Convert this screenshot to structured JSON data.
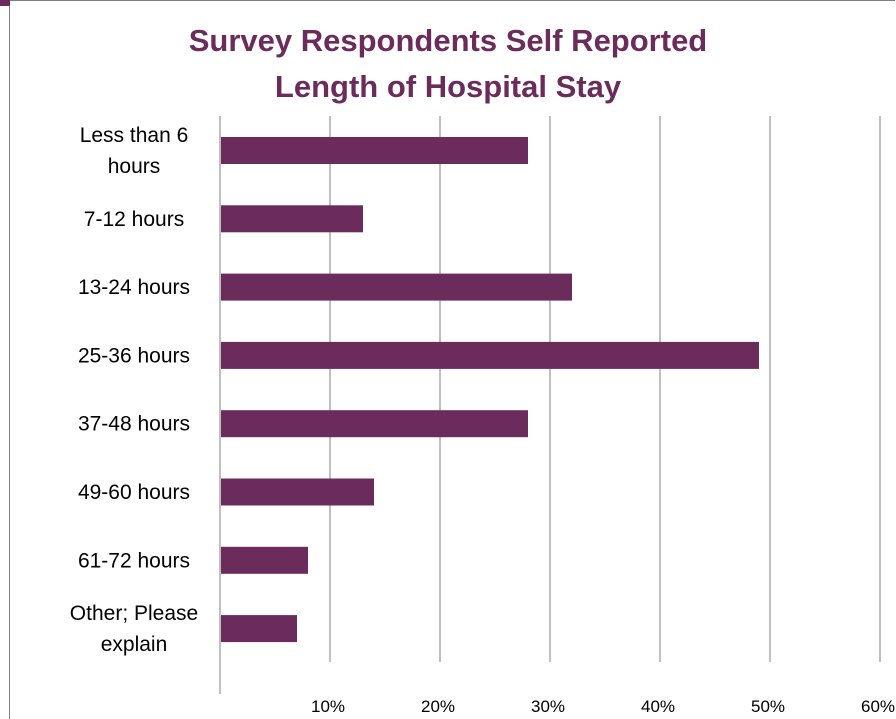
{
  "chart_data": {
    "type": "bar",
    "orientation": "horizontal",
    "title": "Survey Respondents Self Reported Length of Hospital Stay",
    "title_lines": [
      "Survey Respondents Self Reported",
      "Length of Hospital Stay"
    ],
    "categories": [
      [
        "Less than 6",
        "hours"
      ],
      [
        "7-12 hours"
      ],
      [
        "13-24 hours"
      ],
      [
        "25-36 hours"
      ],
      [
        "37-48 hours"
      ],
      [
        "49-60 hours"
      ],
      [
        "61-72 hours"
      ],
      [
        "Other; Please",
        "explain"
      ]
    ],
    "values": [
      28,
      13,
      32,
      49,
      28,
      14,
      8,
      7
    ],
    "xlim": [
      0,
      60
    ],
    "ticks": [
      10,
      20,
      30,
      40,
      50,
      60
    ],
    "tick_labels": [
      "10%",
      "20%",
      "30%",
      "40%",
      "50%",
      "60%"
    ],
    "grid": true,
    "legend": "none",
    "bar_color": "#6b2c5c",
    "title_color": "#6b2c5c",
    "grid_color": "#7f7f7f"
  }
}
